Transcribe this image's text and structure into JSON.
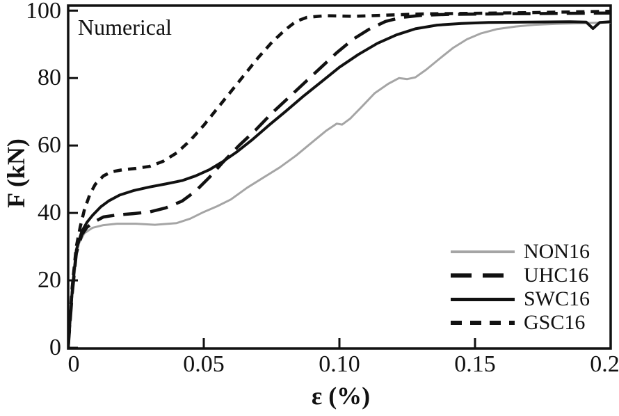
{
  "annotation": "Numerical",
  "axes": {
    "x_label": "ε (%)",
    "y_label": "F (kN)",
    "x_tick_labels": [
      "0",
      "0.05",
      "0.10",
      "0.15",
      "0.20"
    ],
    "y_tick_labels": [
      "0",
      "20",
      "40",
      "60",
      "80",
      "100"
    ]
  },
  "chart_data": {
    "type": "line",
    "title": "",
    "xlabel": "ε (%)",
    "ylabel": "F (kN)",
    "annotation": "Numerical",
    "xlim": [
      0,
      0.2
    ],
    "ylim": [
      0,
      101.5
    ],
    "x_tick_values": [
      0,
      0.05,
      0.1,
      0.15,
      0.2
    ],
    "y_tick_values": [
      0,
      20,
      40,
      60,
      80,
      100
    ],
    "grid": false,
    "legend_position": "lower right",
    "colors": {
      "black": "#111111",
      "gray": "#a5a5a5"
    },
    "series": [
      {
        "name": "NON16",
        "color": "#a5a5a5",
        "style": "solid",
        "width": 3,
        "legend_thickness": 4,
        "points": [
          [
            0,
            0
          ],
          [
            0.0015,
            15
          ],
          [
            0.003,
            27
          ],
          [
            0.004,
            31
          ],
          [
            0.006,
            34
          ],
          [
            0.009,
            35.6
          ],
          [
            0.013,
            36.4
          ],
          [
            0.018,
            36.8
          ],
          [
            0.025,
            36.8
          ],
          [
            0.032,
            36.5
          ],
          [
            0.04,
            37
          ],
          [
            0.045,
            38.3
          ],
          [
            0.05,
            40.3
          ],
          [
            0.055,
            42
          ],
          [
            0.06,
            44
          ],
          [
            0.066,
            47.5
          ],
          [
            0.072,
            50.5
          ],
          [
            0.078,
            53.5
          ],
          [
            0.084,
            57
          ],
          [
            0.09,
            61
          ],
          [
            0.095,
            64.3
          ],
          [
            0.099,
            66.5
          ],
          [
            0.101,
            66.2
          ],
          [
            0.104,
            68
          ],
          [
            0.108,
            71.3
          ],
          [
            0.113,
            75.5
          ],
          [
            0.118,
            78.3
          ],
          [
            0.122,
            80
          ],
          [
            0.125,
            79.7
          ],
          [
            0.128,
            80.2
          ],
          [
            0.132,
            82.5
          ],
          [
            0.137,
            85.8
          ],
          [
            0.142,
            89
          ],
          [
            0.147,
            91.5
          ],
          [
            0.152,
            93.2
          ],
          [
            0.158,
            94.5
          ],
          [
            0.165,
            95.3
          ],
          [
            0.172,
            95.8
          ],
          [
            0.18,
            96.1
          ],
          [
            0.19,
            96.3
          ],
          [
            0.2,
            96.5
          ]
        ]
      },
      {
        "name": "UHC16",
        "color": "#111111",
        "style": "long-dash",
        "width": 4.5,
        "legend_thickness": 6,
        "points": [
          [
            0,
            0
          ],
          [
            0.0015,
            16
          ],
          [
            0.003,
            28
          ],
          [
            0.005,
            33.5
          ],
          [
            0.007,
            35.8
          ],
          [
            0.01,
            37.5
          ],
          [
            0.013,
            38.8
          ],
          [
            0.018,
            39.4
          ],
          [
            0.024,
            39.8
          ],
          [
            0.03,
            40.3
          ],
          [
            0.036,
            41.5
          ],
          [
            0.042,
            43.5
          ],
          [
            0.047,
            46.5
          ],
          [
            0.052,
            50.5
          ],
          [
            0.057,
            55
          ],
          [
            0.063,
            60
          ],
          [
            0.069,
            64.5
          ],
          [
            0.075,
            69.5
          ],
          [
            0.081,
            74
          ],
          [
            0.087,
            78.5
          ],
          [
            0.093,
            83
          ],
          [
            0.099,
            87.5
          ],
          [
            0.105,
            91.5
          ],
          [
            0.111,
            94.5
          ],
          [
            0.117,
            96.8
          ],
          [
            0.123,
            98
          ],
          [
            0.13,
            98.6
          ],
          [
            0.14,
            98.9
          ],
          [
            0.155,
            99
          ],
          [
            0.17,
            99.1
          ],
          [
            0.185,
            99.2
          ],
          [
            0.2,
            99.3
          ]
        ]
      },
      {
        "name": "SWC16",
        "color": "#111111",
        "style": "solid",
        "width": 4,
        "legend_thickness": 5,
        "points": [
          [
            0,
            0
          ],
          [
            0.0015,
            17
          ],
          [
            0.003,
            29
          ],
          [
            0.005,
            34.5
          ],
          [
            0.007,
            37.3
          ],
          [
            0.009,
            39.3
          ],
          [
            0.012,
            41.8
          ],
          [
            0.015,
            43.6
          ],
          [
            0.019,
            45.3
          ],
          [
            0.024,
            46.6
          ],
          [
            0.03,
            47.7
          ],
          [
            0.036,
            48.6
          ],
          [
            0.042,
            49.6
          ],
          [
            0.047,
            51
          ],
          [
            0.052,
            52.8
          ],
          [
            0.057,
            55.2
          ],
          [
            0.062,
            58
          ],
          [
            0.068,
            61.8
          ],
          [
            0.074,
            66
          ],
          [
            0.08,
            70
          ],
          [
            0.087,
            74.8
          ],
          [
            0.094,
            79.3
          ],
          [
            0.1,
            83.2
          ],
          [
            0.107,
            87
          ],
          [
            0.114,
            90.3
          ],
          [
            0.121,
            92.8
          ],
          [
            0.128,
            94.6
          ],
          [
            0.136,
            95.7
          ],
          [
            0.145,
            96.2
          ],
          [
            0.155,
            96.5
          ],
          [
            0.17,
            96.6
          ],
          [
            0.185,
            96.7
          ],
          [
            0.191,
            96.6
          ],
          [
            0.1935,
            94.7
          ],
          [
            0.196,
            96.5
          ],
          [
            0.2,
            96.7
          ]
        ]
      },
      {
        "name": "GSC16",
        "color": "#111111",
        "style": "short-dash",
        "width": 4.5,
        "legend_thickness": 6,
        "points": [
          [
            0,
            0
          ],
          [
            0.0015,
            18
          ],
          [
            0.003,
            30
          ],
          [
            0.0045,
            36
          ],
          [
            0.006,
            41
          ],
          [
            0.008,
            45.5
          ],
          [
            0.01,
            48.5
          ],
          [
            0.013,
            51
          ],
          [
            0.016,
            52.2
          ],
          [
            0.02,
            52.8
          ],
          [
            0.025,
            53.2
          ],
          [
            0.03,
            53.8
          ],
          [
            0.035,
            55.3
          ],
          [
            0.04,
            57.8
          ],
          [
            0.045,
            61.5
          ],
          [
            0.05,
            66
          ],
          [
            0.055,
            71
          ],
          [
            0.06,
            76
          ],
          [
            0.065,
            81
          ],
          [
            0.07,
            86
          ],
          [
            0.075,
            90.5
          ],
          [
            0.08,
            94.3
          ],
          [
            0.084,
            96.8
          ],
          [
            0.088,
            98
          ],
          [
            0.095,
            98.5
          ],
          [
            0.105,
            98.3
          ],
          [
            0.115,
            98.6
          ],
          [
            0.13,
            99
          ],
          [
            0.15,
            99.2
          ],
          [
            0.17,
            99.4
          ],
          [
            0.185,
            99.6
          ],
          [
            0.2,
            99.8
          ]
        ]
      }
    ]
  }
}
